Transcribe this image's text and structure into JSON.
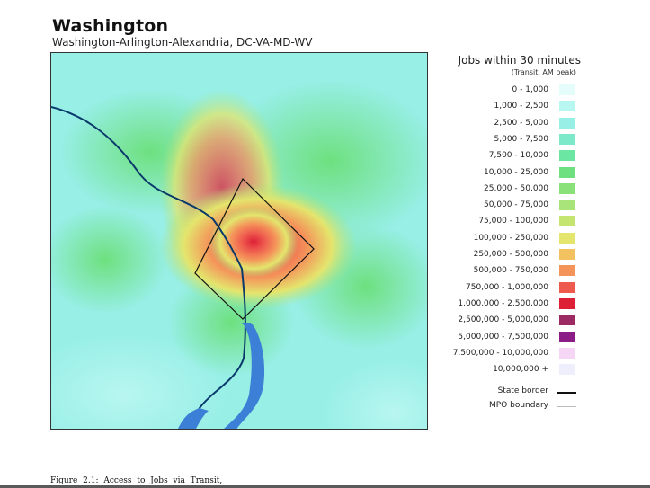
{
  "header": {
    "title": "Washington",
    "subtitle": "Washington-Arlington-Alexandria, DC-VA-MD-WV"
  },
  "legend": {
    "title": "Jobs within 30 minutes",
    "subtitle": "(Transit, AM peak)",
    "items": [
      {
        "label": "0 - 1,000",
        "color": "#e4fdfb"
      },
      {
        "label": "1,000 - 2,500",
        "color": "#b8f6f1"
      },
      {
        "label": "2,500 - 5,000",
        "color": "#97efe6"
      },
      {
        "label": "5,000 - 7,500",
        "color": "#7de9c8"
      },
      {
        "label": "7,500 - 10,000",
        "color": "#6ce7a3"
      },
      {
        "label": "10,000 - 25,000",
        "color": "#6ee07f"
      },
      {
        "label": "25,000 - 50,000",
        "color": "#8ae079"
      },
      {
        "label": "50,000 - 75,000",
        "color": "#a9e47a"
      },
      {
        "label": "75,000 - 100,000",
        "color": "#c4e56f"
      },
      {
        "label": "100,000 - 250,000",
        "color": "#e4e56d"
      },
      {
        "label": "250,000 - 500,000",
        "color": "#f2c261"
      },
      {
        "label": "500,000 - 750,000",
        "color": "#f4945a"
      },
      {
        "label": "750,000 - 1,000,000",
        "color": "#ee5a4e"
      },
      {
        "label": "1,000,000 - 2,500,000",
        "color": "#de2037"
      },
      {
        "label": "2,500,000 - 5,000,000",
        "color": "#9b2b62"
      },
      {
        "label": "5,000,000 - 7,500,000",
        "color": "#8c1d86"
      },
      {
        "label": "7,500,000 - 10,000,000",
        "color": "#f5d6f5"
      },
      {
        "label": "10,000,000 +",
        "color": "#eeeefc"
      }
    ],
    "lines": [
      {
        "label": "State border",
        "color": "#111111"
      },
      {
        "label": "MPO boundary",
        "color": "#bbbbbb"
      }
    ]
  },
  "caption": "Figure 2.1: Access to Jobs via Transit,"
}
